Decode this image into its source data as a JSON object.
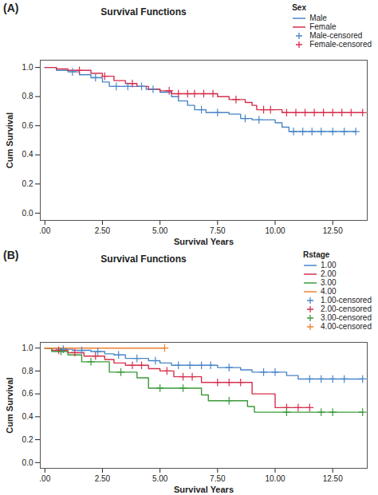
{
  "chart_data": [
    {
      "type": "line",
      "panel_label": "(A)",
      "title": "Survival Functions",
      "x_label": "Survival Years",
      "y_label": "Cum Survival",
      "legend_title": "Sex",
      "legend": "right",
      "grid": false,
      "xlim": [
        -0.2,
        14.0
      ],
      "xticks": [
        {
          "value": 0,
          "label": ".00"
        },
        {
          "value": 2.5,
          "label": "2.50"
        },
        {
          "value": 5,
          "label": "5.00"
        },
        {
          "value": 7.5,
          "label": "7.50"
        },
        {
          "value": 10,
          "label": "10.00"
        },
        {
          "value": 12.5,
          "label": "12.50"
        }
      ],
      "ylim": [
        -0.05,
        1.05
      ],
      "yticks": [
        {
          "value": 0,
          "label": "0.0"
        },
        {
          "value": 0.2,
          "label": "0.2"
        },
        {
          "value": 0.4,
          "label": "0.4"
        },
        {
          "value": 0.6,
          "label": "0.6"
        },
        {
          "value": 0.8,
          "label": "0.8"
        },
        {
          "value": 1,
          "label": "1.0"
        }
      ],
      "series": [
        {
          "name": "Male",
          "color": "#4a86c8",
          "type": "step",
          "x": [
            0,
            0.5,
            1.0,
            1.5,
            2.0,
            2.5,
            2.8,
            4.4,
            5.0,
            5.5,
            5.8,
            6.2,
            6.5,
            7.0,
            8.0,
            8.5,
            9.0,
            10.0,
            10.3,
            10.6,
            13.5
          ],
          "values": [
            1,
            0.98,
            0.97,
            0.95,
            0.93,
            0.9,
            0.87,
            0.85,
            0.83,
            0.8,
            0.77,
            0.74,
            0.71,
            0.69,
            0.68,
            0.65,
            0.64,
            0.62,
            0.59,
            0.56,
            0.56
          ]
        },
        {
          "name": "Female",
          "color": "#d6304e",
          "type": "step",
          "x": [
            0,
            0.5,
            1.0,
            2.0,
            2.5,
            3.0,
            3.5,
            4.0,
            4.5,
            5.0,
            5.5,
            7.5,
            8.0,
            8.7,
            9.0,
            9.2,
            10.3,
            13.8
          ],
          "values": [
            1,
            0.99,
            0.98,
            0.96,
            0.94,
            0.91,
            0.89,
            0.87,
            0.85,
            0.84,
            0.82,
            0.8,
            0.78,
            0.76,
            0.74,
            0.71,
            0.69,
            0.69
          ]
        },
        {
          "name": "Male-censored",
          "color": "#4a86c8",
          "type": "scatter",
          "marker": "plus",
          "x": [
            1.2,
            2.2,
            3.1,
            3.6,
            4.2,
            4.7,
            6.8,
            7.5,
            8.7,
            9.3,
            10.8,
            11.2,
            11.6,
            12.0,
            12.5,
            13.0,
            13.5
          ],
          "values": [
            0.97,
            0.93,
            0.87,
            0.87,
            0.87,
            0.85,
            0.71,
            0.69,
            0.65,
            0.64,
            0.56,
            0.56,
            0.56,
            0.56,
            0.56,
            0.56,
            0.56
          ]
        },
        {
          "name": "Female-censored",
          "color": "#d6304e",
          "type": "scatter",
          "marker": "plus",
          "x": [
            1.5,
            2.6,
            3.8,
            5.4,
            5.8,
            6.2,
            6.5,
            6.9,
            7.3,
            8.3,
            9.5,
            9.8,
            10.5,
            10.9,
            11.3,
            11.7,
            12.1,
            12.5,
            12.9,
            13.3,
            13.8
          ],
          "values": [
            0.98,
            0.94,
            0.89,
            0.84,
            0.82,
            0.82,
            0.82,
            0.82,
            0.82,
            0.78,
            0.71,
            0.71,
            0.69,
            0.69,
            0.69,
            0.69,
            0.69,
            0.69,
            0.69,
            0.69,
            0.69
          ]
        }
      ]
    },
    {
      "type": "line",
      "panel_label": "(B)",
      "title": "Survival Functions",
      "x_label": "Survival Years",
      "y_label": "Cum Survival",
      "legend_title": "Rstage",
      "legend": "right",
      "grid": false,
      "xlim": [
        -0.2,
        14.0
      ],
      "xticks": [
        {
          "value": 0,
          "label": ".00"
        },
        {
          "value": 2.5,
          "label": "2.50"
        },
        {
          "value": 5,
          "label": "5.00"
        },
        {
          "value": 7.5,
          "label": "7.50"
        },
        {
          "value": 10,
          "label": "10.00"
        },
        {
          "value": 12.5,
          "label": "12.50"
        }
      ],
      "ylim": [
        -0.05,
        1.05
      ],
      "yticks": [
        {
          "value": 0,
          "label": "0.0"
        },
        {
          "value": 0.2,
          "label": "0.2"
        },
        {
          "value": 0.4,
          "label": "0.4"
        },
        {
          "value": 0.6,
          "label": "0.6"
        },
        {
          "value": 0.8,
          "label": "0.8"
        },
        {
          "value": 1,
          "label": "1.0"
        }
      ],
      "series": [
        {
          "name": "1.00",
          "color": "#4a86c8",
          "type": "step",
          "x": [
            0,
            0.5,
            1.2,
            2.0,
            2.6,
            3.0,
            3.5,
            4.5,
            5.0,
            5.5,
            7.5,
            8.5,
            9.0,
            10.5,
            11.0,
            13.8
          ],
          "values": [
            1,
            0.99,
            0.98,
            0.97,
            0.95,
            0.94,
            0.91,
            0.89,
            0.87,
            0.85,
            0.83,
            0.81,
            0.79,
            0.76,
            0.73,
            0.73
          ]
        },
        {
          "name": "2.00",
          "color": "#d6304e",
          "type": "step",
          "x": [
            0,
            0.3,
            1.0,
            1.7,
            2.6,
            3.0,
            3.5,
            4.5,
            5.0,
            5.6,
            6.8,
            9.0,
            10.0,
            11.5
          ],
          "values": [
            1,
            0.98,
            0.96,
            0.93,
            0.9,
            0.87,
            0.85,
            0.82,
            0.8,
            0.75,
            0.7,
            0.6,
            0.48,
            0.48
          ]
        },
        {
          "name": "3.00",
          "color": "#3a9a3a",
          "type": "step",
          "x": [
            0,
            0.3,
            1.0,
            1.6,
            2.8,
            4.0,
            4.5,
            6.8,
            7.1,
            8.8,
            9.1,
            13.8
          ],
          "values": [
            1,
            0.97,
            0.94,
            0.88,
            0.79,
            0.74,
            0.65,
            0.59,
            0.54,
            0.49,
            0.44,
            0.44
          ]
        },
        {
          "name": "4.00",
          "color": "#f08030",
          "type": "step",
          "x": [
            0,
            5.2
          ],
          "values": [
            1,
            1
          ]
        },
        {
          "name": "1.00-censored",
          "color": "#4a86c8",
          "type": "scatter",
          "marker": "plus",
          "x": [
            0.8,
            1.6,
            2.3,
            3.2,
            4.0,
            4.8,
            5.8,
            6.3,
            6.8,
            7.2,
            8.0,
            9.5,
            10.0,
            11.5,
            12.0,
            12.5,
            13.0,
            13.8
          ],
          "values": [
            0.99,
            0.98,
            0.97,
            0.94,
            0.91,
            0.89,
            0.85,
            0.85,
            0.85,
            0.85,
            0.83,
            0.79,
            0.79,
            0.73,
            0.73,
            0.73,
            0.73,
            0.73
          ]
        },
        {
          "name": "2.00-censored",
          "color": "#d6304e",
          "type": "scatter",
          "marker": "plus",
          "x": [
            0.6,
            1.3,
            2.2,
            3.8,
            4.2,
            5.3,
            6.0,
            6.4,
            7.5,
            8.0,
            8.5,
            10.5,
            11.0,
            11.5
          ],
          "values": [
            0.98,
            0.96,
            0.93,
            0.85,
            0.85,
            0.8,
            0.75,
            0.75,
            0.7,
            0.7,
            0.7,
            0.48,
            0.48,
            0.48
          ]
        },
        {
          "name": "3.00-censored",
          "color": "#3a9a3a",
          "type": "scatter",
          "marker": "plus",
          "x": [
            0.7,
            2.0,
            3.3,
            5.0,
            6.0,
            8.0,
            10.5,
            12.0,
            12.5,
            13.8
          ],
          "values": [
            0.97,
            0.88,
            0.79,
            0.65,
            0.65,
            0.54,
            0.44,
            0.44,
            0.44,
            0.44
          ]
        },
        {
          "name": "4.00-censored",
          "color": "#f08030",
          "type": "scatter",
          "marker": "plus",
          "x": [
            5.2
          ],
          "values": [
            1
          ]
        }
      ]
    }
  ]
}
